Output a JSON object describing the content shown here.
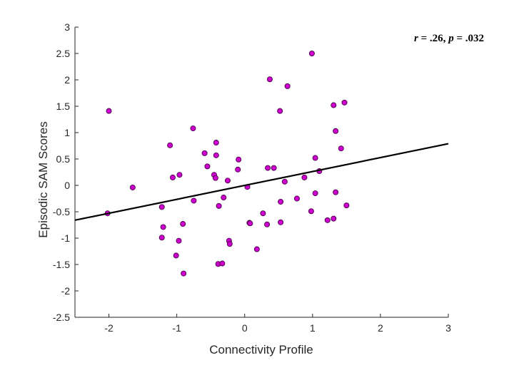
{
  "chart_data": {
    "type": "scatter",
    "title": "",
    "xlabel": "Connectivity Profile",
    "ylabel": "Episodic SAM Scores",
    "xlim": [
      -2.5,
      3
    ],
    "ylim": [
      -2.5,
      3
    ],
    "xticks": [
      -2,
      -1,
      0,
      1,
      2,
      3
    ],
    "xtick_labels": [
      "-2",
      "-1",
      "0",
      "1",
      "2",
      "3"
    ],
    "yticks": [
      -2.5,
      -2,
      -1.5,
      -1,
      -0.5,
      0,
      0.5,
      1,
      1.5,
      2,
      2.5,
      3
    ],
    "ytick_labels": [
      "-2.5",
      "-2",
      "-1.5",
      "-1",
      "-0.5",
      "0",
      "0.5",
      "1",
      "1.5",
      "2",
      "2.5",
      "3"
    ],
    "annotation": {
      "r_symbol": "r",
      "r_value": " = .26, ",
      "p_symbol": "p",
      "p_value": " = .032"
    },
    "fit_line": {
      "x": [
        -2.5,
        3
      ],
      "y": [
        -0.66,
        0.79
      ],
      "color": "#000000"
    },
    "marker_color": "#cc00cc",
    "marker_edge": "#3a003a",
    "points": [
      {
        "x": -2.0,
        "y": 1.41
      },
      {
        "x": -2.02,
        "y": -0.53
      },
      {
        "x": -1.65,
        "y": -0.04
      },
      {
        "x": -1.22,
        "y": -0.41
      },
      {
        "x": -1.2,
        "y": -0.79
      },
      {
        "x": -1.22,
        "y": -0.99
      },
      {
        "x": -1.1,
        "y": 0.76
      },
      {
        "x": -1.06,
        "y": 0.15
      },
      {
        "x": -1.01,
        "y": -1.33
      },
      {
        "x": -0.97,
        "y": -1.05
      },
      {
        "x": -0.96,
        "y": 0.2
      },
      {
        "x": -0.91,
        "y": -0.73
      },
      {
        "x": -0.9,
        "y": -1.67
      },
      {
        "x": -0.76,
        "y": 1.08
      },
      {
        "x": -0.75,
        "y": -0.29
      },
      {
        "x": -0.59,
        "y": 0.61
      },
      {
        "x": -0.55,
        "y": 0.36
      },
      {
        "x": -0.45,
        "y": 0.2
      },
      {
        "x": -0.43,
        "y": 0.14
      },
      {
        "x": -0.42,
        "y": 0.81
      },
      {
        "x": -0.42,
        "y": 0.57
      },
      {
        "x": -0.38,
        "y": -0.39
      },
      {
        "x": -0.39,
        "y": -1.49
      },
      {
        "x": -0.33,
        "y": -1.48
      },
      {
        "x": -0.31,
        "y": -0.23
      },
      {
        "x": -0.25,
        "y": 0.09
      },
      {
        "x": -0.23,
        "y": -1.05
      },
      {
        "x": -0.22,
        "y": -1.11
      },
      {
        "x": -0.1,
        "y": 0.3
      },
      {
        "x": -0.09,
        "y": 0.49
      },
      {
        "x": 0.04,
        "y": -0.03
      },
      {
        "x": 0.07,
        "y": -0.71
      },
      {
        "x": 0.08,
        "y": -0.72
      },
      {
        "x": 0.18,
        "y": -1.21
      },
      {
        "x": 0.27,
        "y": -0.53
      },
      {
        "x": 0.33,
        "y": -0.74
      },
      {
        "x": 0.34,
        "y": 0.33
      },
      {
        "x": 0.37,
        "y": 2.01
      },
      {
        "x": 0.43,
        "y": 0.33
      },
      {
        "x": 0.52,
        "y": 1.41
      },
      {
        "x": 0.53,
        "y": -0.31
      },
      {
        "x": 0.53,
        "y": -0.7
      },
      {
        "x": 0.59,
        "y": 0.07
      },
      {
        "x": 0.63,
        "y": 1.88
      },
      {
        "x": 0.77,
        "y": -0.25
      },
      {
        "x": 0.88,
        "y": 0.15
      },
      {
        "x": 0.98,
        "y": -0.49
      },
      {
        "x": 0.99,
        "y": 2.5
      },
      {
        "x": 1.04,
        "y": 0.52
      },
      {
        "x": 1.04,
        "y": -0.15
      },
      {
        "x": 1.1,
        "y": 0.27
      },
      {
        "x": 1.22,
        "y": -0.66
      },
      {
        "x": 1.31,
        "y": -0.63
      },
      {
        "x": 1.31,
        "y": 1.52
      },
      {
        "x": 1.34,
        "y": 1.03
      },
      {
        "x": 1.34,
        "y": -0.13
      },
      {
        "x": 1.42,
        "y": 0.7
      },
      {
        "x": 1.47,
        "y": 1.57
      },
      {
        "x": 1.5,
        "y": -0.38
      }
    ]
  }
}
